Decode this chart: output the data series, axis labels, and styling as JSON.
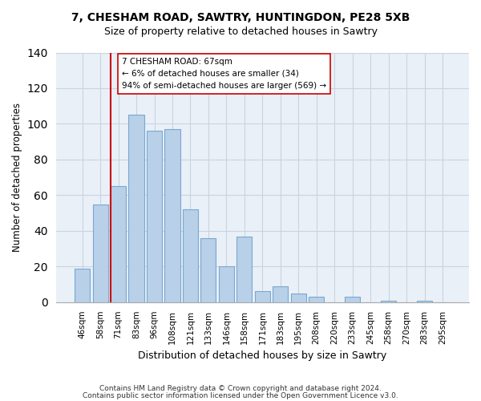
{
  "title_line1": "7, CHESHAM ROAD, SAWTRY, HUNTINGDON, PE28 5XB",
  "title_line2": "Size of property relative to detached houses in Sawtry",
  "xlabel": "Distribution of detached houses by size in Sawtry",
  "ylabel": "Number of detached properties",
  "bar_labels": [
    "46sqm",
    "58sqm",
    "71sqm",
    "83sqm",
    "96sqm",
    "108sqm",
    "121sqm",
    "133sqm",
    "146sqm",
    "158sqm",
    "171sqm",
    "183sqm",
    "195sqm",
    "208sqm",
    "220sqm",
    "233sqm",
    "245sqm",
    "258sqm",
    "270sqm",
    "283sqm",
    "295sqm"
  ],
  "bar_values": [
    19,
    55,
    65,
    105,
    96,
    97,
    52,
    36,
    20,
    37,
    6,
    9,
    5,
    3,
    0,
    3,
    0,
    1,
    0,
    1,
    0
  ],
  "bar_color": "#b8d0e8",
  "bar_edge_color": "#7aa8d0",
  "vline_color": "#cc0000",
  "vline_index": 2,
  "annotation_title": "7 CHESHAM ROAD: 67sqm",
  "annotation_line1": "← 6% of detached houses are smaller (34)",
  "annotation_line2": "94% of semi-detached houses are larger (569) →",
  "annotation_box_facecolor": "#ffffff",
  "annotation_box_edgecolor": "#cc0000",
  "bg_color": "#eaf0f8",
  "ylim": [
    0,
    140
  ],
  "yticks": [
    0,
    20,
    40,
    60,
    80,
    100,
    120,
    140
  ],
  "grid_color": "#c8d4e0",
  "footer_line1": "Contains HM Land Registry data © Crown copyright and database right 2024.",
  "footer_line2": "Contains public sector information licensed under the Open Government Licence v3.0."
}
